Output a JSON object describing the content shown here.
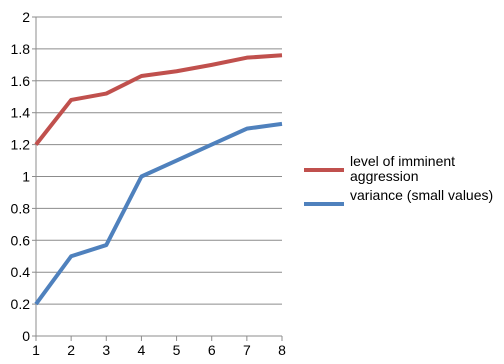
{
  "chart_data": {
    "type": "line",
    "x": [
      1,
      2,
      3,
      4,
      5,
      6,
      7,
      8
    ],
    "xticks": [
      "1",
      "2",
      "3",
      "4",
      "5",
      "6",
      "7",
      "8"
    ],
    "yticks": [
      "0",
      "0.2",
      "0.4",
      "0.6",
      "0.8",
      "1",
      "1.2",
      "1.4",
      "1.6",
      "1.8",
      "2"
    ],
    "ylim": [
      0,
      2
    ],
    "xlim": [
      1,
      8
    ],
    "grid": "horizontal",
    "legend_position": "right",
    "series": [
      {
        "name": "level of imminent aggression",
        "color": "#c0504d",
        "values": [
          1.2,
          1.48,
          1.52,
          1.63,
          1.66,
          1.7,
          1.745,
          1.76
        ]
      },
      {
        "name": "variance (small values)",
        "color": "#4f81bd",
        "values": [
          0.2,
          0.5,
          0.57,
          1.0,
          1.1,
          1.2,
          1.3,
          1.33
        ]
      }
    ]
  }
}
